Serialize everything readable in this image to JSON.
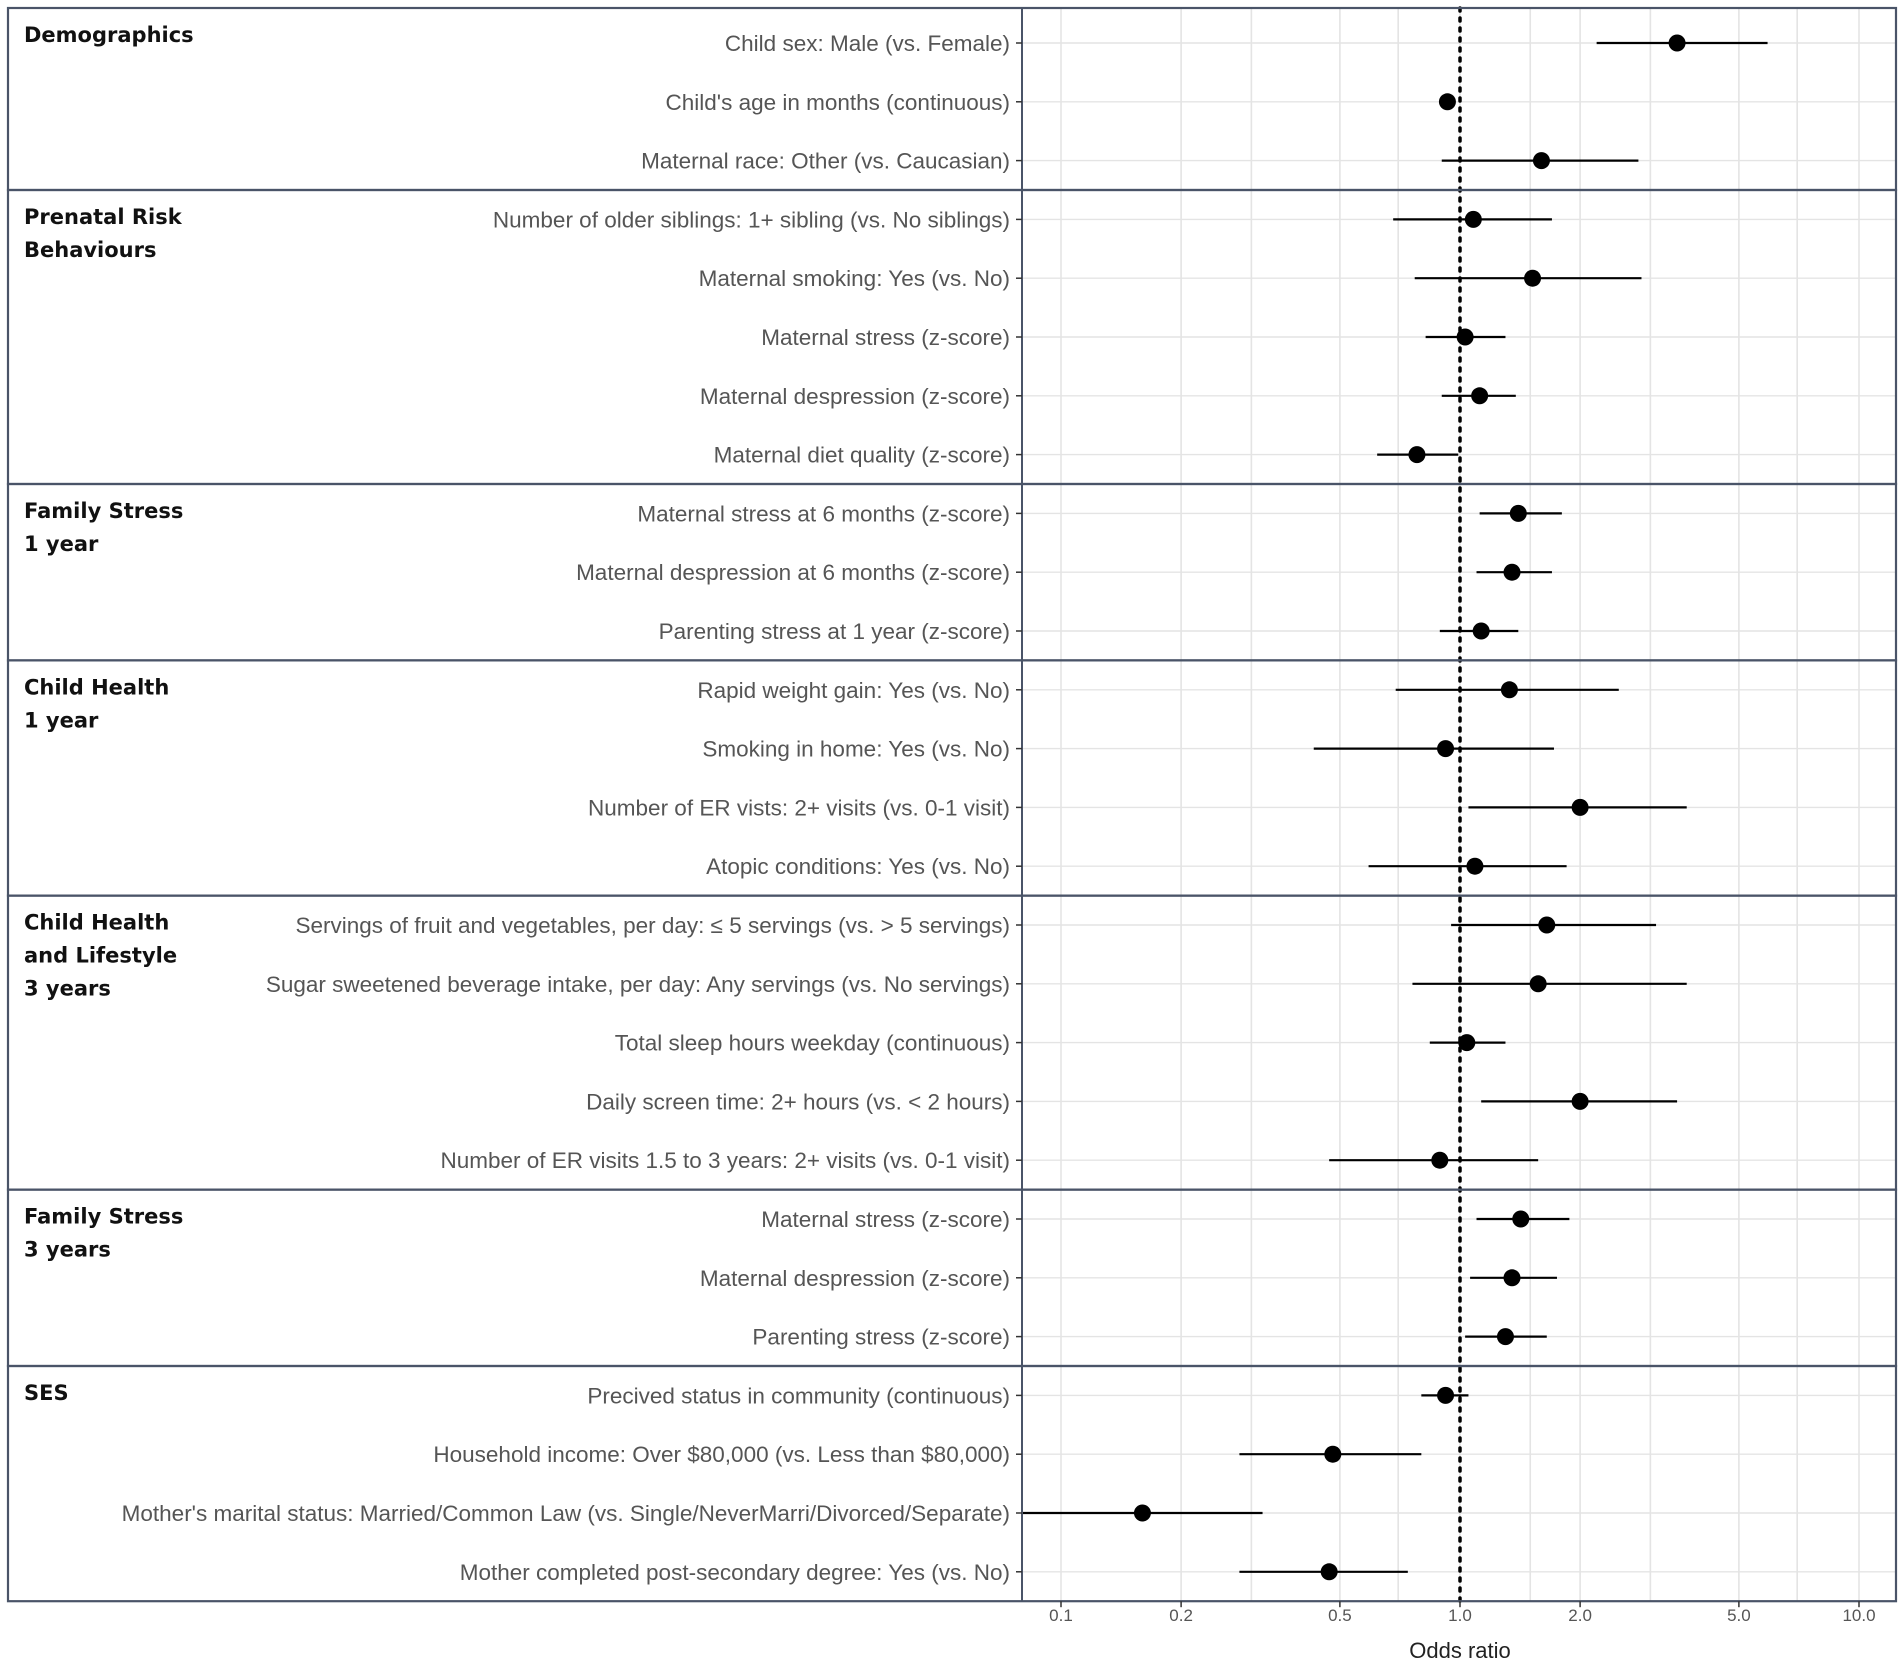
{
  "chart_data": {
    "type": "scatter",
    "subtype": "forest-plot",
    "title": "",
    "xlabel": "Odds ratio",
    "xscale": "log",
    "xlim": [
      0.08,
      12
    ],
    "xticks": [
      0.1,
      0.2,
      0.5,
      1.0,
      2.0,
      5.0,
      10.0
    ],
    "xtick_labels": [
      "0.1",
      "0.2",
      "0.5",
      "1.0",
      "2.0",
      "5.0",
      "10.0"
    ],
    "reference_line": 1.0,
    "grid": true,
    "groups": [
      {
        "label_lines": [
          "Demographics"
        ],
        "rows": [
          {
            "label": "Child sex: Male (vs. Female)",
            "or": 3.5,
            "lo": 2.2,
            "hi": 5.9
          },
          {
            "label": "Child's age in months (continuous)",
            "or": 0.93,
            "lo": 0.9,
            "hi": 0.96
          },
          {
            "label": "Maternal race: Other (vs. Caucasian)",
            "or": 1.6,
            "lo": 0.9,
            "hi": 2.8
          }
        ]
      },
      {
        "label_lines": [
          "Prenatal Risk",
          "Behaviours"
        ],
        "rows": [
          {
            "label": "Number of older siblings: 1+ sibling (vs. No siblings)",
            "or": 1.08,
            "lo": 0.68,
            "hi": 1.7
          },
          {
            "label": "Maternal smoking: Yes (vs. No)",
            "or": 1.52,
            "lo": 0.77,
            "hi": 2.85
          },
          {
            "label": "Maternal stress (z-score)",
            "or": 1.03,
            "lo": 0.82,
            "hi": 1.3
          },
          {
            "label": "Maternal despression (z-score)",
            "or": 1.12,
            "lo": 0.9,
            "hi": 1.38
          },
          {
            "label": "Maternal diet quality (z-score)",
            "or": 0.78,
            "lo": 0.62,
            "hi": 0.99
          }
        ]
      },
      {
        "label_lines": [
          "Family Stress",
          "1 year"
        ],
        "rows": [
          {
            "label": "Maternal stress at 6 months (z-score)",
            "or": 1.4,
            "lo": 1.12,
            "hi": 1.8
          },
          {
            "label": "Maternal despression at 6 months (z-score)",
            "or": 1.35,
            "lo": 1.1,
            "hi": 1.7
          },
          {
            "label": "Parenting stress at 1 year (z-score)",
            "or": 1.13,
            "lo": 0.89,
            "hi": 1.4
          }
        ]
      },
      {
        "label_lines": [
          "Child Health",
          "1 year"
        ],
        "rows": [
          {
            "label": "Rapid weight gain: Yes (vs. No)",
            "or": 1.33,
            "lo": 0.69,
            "hi": 2.5
          },
          {
            "label": "Smoking in home: Yes (vs. No)",
            "or": 0.92,
            "lo": 0.43,
            "hi": 1.72
          },
          {
            "label": "Number of ER vists: 2+ visits (vs. 0-1 visit)",
            "or": 2.0,
            "lo": 1.05,
            "hi": 3.7
          },
          {
            "label": "Atopic conditions: Yes (vs. No)",
            "or": 1.09,
            "lo": 0.59,
            "hi": 1.85
          }
        ]
      },
      {
        "label_lines": [
          "Child Health",
          "and Lifestyle",
          "3 years"
        ],
        "rows": [
          {
            "label": "Servings of fruit and vegetables, per day: ≤ 5 servings (vs. > 5 servings)",
            "or": 1.65,
            "lo": 0.95,
            "hi": 3.1
          },
          {
            "label": "Sugar sweetened beverage intake, per day: Any servings (vs. No servings)",
            "or": 1.57,
            "lo": 0.76,
            "hi": 3.7
          },
          {
            "label": "Total sleep hours weekday (continuous)",
            "or": 1.04,
            "lo": 0.84,
            "hi": 1.3
          },
          {
            "label": "Daily screen time: 2+ hours (vs. < 2 hours)",
            "or": 2.0,
            "lo": 1.13,
            "hi": 3.5
          },
          {
            "label": "Number of ER visits 1.5 to 3 years: 2+ visits (vs. 0-1 visit)",
            "or": 0.89,
            "lo": 0.47,
            "hi": 1.57
          }
        ]
      },
      {
        "label_lines": [
          "Family Stress",
          "3 years"
        ],
        "rows": [
          {
            "label": "Maternal stress (z-score)",
            "or": 1.42,
            "lo": 1.1,
            "hi": 1.88
          },
          {
            "label": "Maternal despression (z-score)",
            "or": 1.35,
            "lo": 1.06,
            "hi": 1.75
          },
          {
            "label": "Parenting stress (z-score)",
            "or": 1.3,
            "lo": 1.03,
            "hi": 1.65
          }
        ]
      },
      {
        "label_lines": [
          "SES"
        ],
        "rows": [
          {
            "label": "Precived status in community (continuous)",
            "or": 0.92,
            "lo": 0.8,
            "hi": 1.05
          },
          {
            "label": "Household income: Over $80,000 (vs. Less than $80,000)",
            "or": 0.48,
            "lo": 0.28,
            "hi": 0.8
          },
          {
            "label": "Mother's marital status: Married/Common Law (vs. Single/NeverMarri/Divorced/Separate)",
            "or": 0.16,
            "lo": 0.08,
            "hi": 0.32
          },
          {
            "label": "Mother completed post-secondary degree: Yes (vs. No)",
            "or": 0.47,
            "lo": 0.28,
            "hi": 0.74
          }
        ]
      }
    ]
  },
  "colors": {
    "frame": "#4a5468",
    "grid": "#e4e4e4",
    "point": "#000000",
    "label": "#555555",
    "group_label": "#111111"
  }
}
